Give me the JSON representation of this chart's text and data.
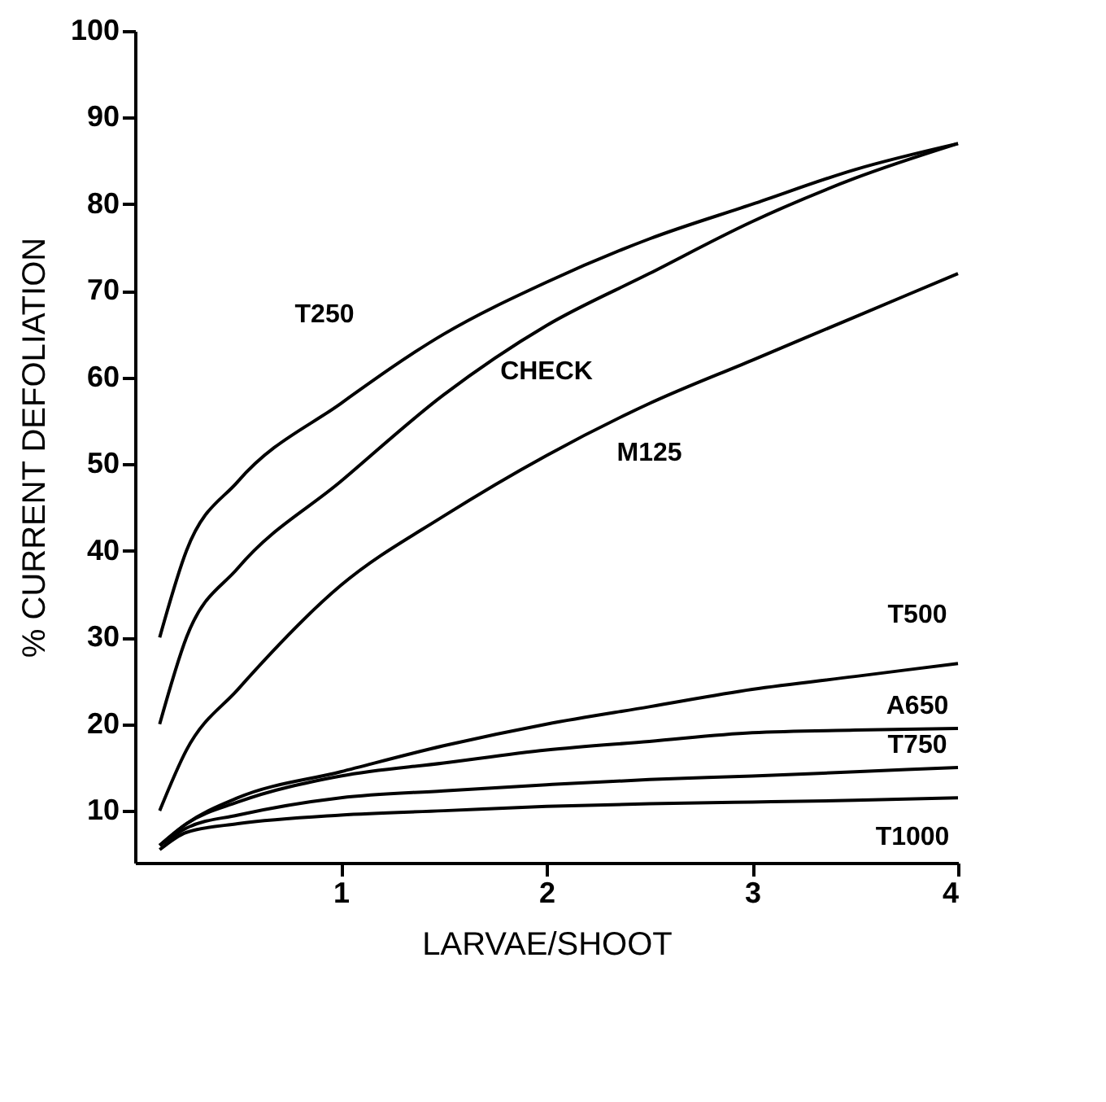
{
  "chart_data": {
    "type": "line",
    "xlabel": "LARVAE/SHOOT",
    "ylabel": "% CURRENT DEFOLIATION",
    "xlim": [
      0,
      4
    ],
    "ylim": [
      4,
      100
    ],
    "xticks": [
      1,
      2,
      3,
      4
    ],
    "yticks": [
      10,
      20,
      30,
      40,
      50,
      60,
      70,
      80,
      90,
      100
    ],
    "grid": false,
    "marker": "none",
    "line_style": "solid",
    "x": [
      0.12,
      0.25,
      0.5,
      1,
      1.5,
      2,
      2.5,
      3,
      3.5,
      4
    ],
    "series": [
      {
        "name": "T250",
        "color": "#000000",
        "values": [
          30,
          40,
          48,
          57,
          65,
          71,
          76,
          80,
          84,
          87
        ]
      },
      {
        "name": "CHECK",
        "color": "#000000",
        "values": [
          20,
          30,
          38,
          48,
          58,
          66,
          72,
          78,
          83,
          87
        ]
      },
      {
        "name": "M125",
        "color": "#000000",
        "values": [
          10,
          17,
          24,
          36,
          44,
          51,
          57,
          62,
          67,
          72
        ]
      },
      {
        "name": "T500",
        "color": "#000000",
        "values": [
          6,
          8.5,
          11.5,
          14.5,
          17.5,
          20,
          22,
          24,
          25.5,
          27
        ]
      },
      {
        "name": "A650",
        "color": "#000000",
        "values": [
          6,
          8.5,
          11,
          14,
          15.5,
          17,
          18,
          19,
          19.3,
          19.5
        ]
      },
      {
        "name": "T750",
        "color": "#000000",
        "values": [
          6,
          8,
          9.5,
          11.5,
          12.3,
          13,
          13.6,
          14,
          14.5,
          15
        ]
      },
      {
        "name": "T1000",
        "color": "#000000",
        "values": [
          5.5,
          7.5,
          8.5,
          9.5,
          10,
          10.5,
          10.8,
          11,
          11.2,
          11.5
        ]
      }
    ]
  }
}
